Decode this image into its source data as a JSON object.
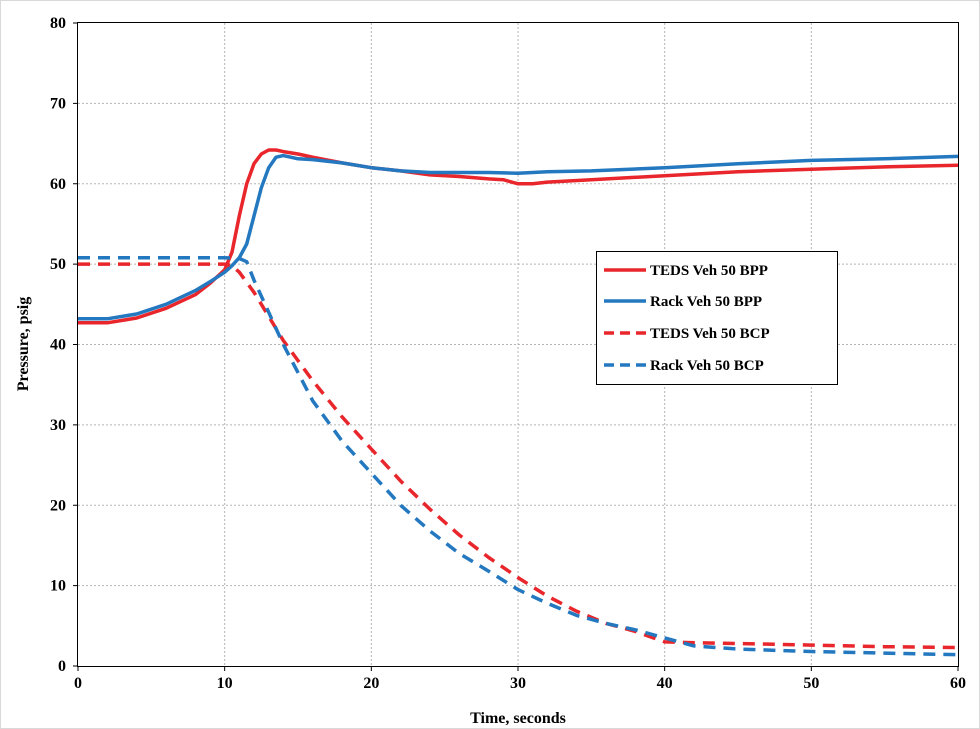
{
  "chart_data": {
    "type": "line",
    "title": "",
    "xlabel": "Time, seconds",
    "ylabel": "Pressure, psig",
    "xlim": [
      0,
      60
    ],
    "ylim": [
      0,
      80
    ],
    "x_ticks": [
      0,
      10,
      20,
      30,
      40,
      50,
      60
    ],
    "y_ticks": [
      0,
      10,
      20,
      30,
      40,
      50,
      60,
      70,
      80
    ],
    "grid": true,
    "legend_position": "right-middle",
    "series": [
      {
        "name": "TEDS Veh 50 BPP",
        "color": "#e8262b",
        "dash": "solid",
        "x": [
          0,
          2,
          4,
          6,
          8,
          9,
          10,
          10.5,
          11,
          11.5,
          12,
          12.5,
          13,
          13.5,
          14,
          15,
          16,
          18,
          20,
          22,
          24,
          26,
          28,
          29,
          30,
          31,
          32,
          35,
          40,
          45,
          50,
          55,
          60
        ],
        "y": [
          42.7,
          42.7,
          43.3,
          44.5,
          46.2,
          47.6,
          49.3,
          51.5,
          56.0,
          60.0,
          62.5,
          63.7,
          64.2,
          64.2,
          64.0,
          63.7,
          63.3,
          62.6,
          62.0,
          61.6,
          61.1,
          60.9,
          60.6,
          60.5,
          60.0,
          60.0,
          60.2,
          60.5,
          61.0,
          61.5,
          61.8,
          62.1,
          62.3
        ]
      },
      {
        "name": "Rack Veh 50 BPP",
        "color": "#2378c0",
        "dash": "solid",
        "x": [
          0,
          2,
          4,
          6,
          8,
          9,
          10,
          10.5,
          11,
          11.5,
          12,
          12.5,
          13,
          13.5,
          14,
          14.5,
          15,
          16,
          18,
          20,
          22,
          24,
          26,
          28,
          30,
          32,
          35,
          40,
          45,
          50,
          55,
          60
        ],
        "y": [
          43.2,
          43.2,
          43.8,
          45.0,
          46.7,
          47.8,
          49.0,
          49.8,
          50.8,
          52.5,
          56.0,
          59.5,
          62.0,
          63.3,
          63.5,
          63.3,
          63.1,
          63.0,
          62.6,
          62.0,
          61.6,
          61.4,
          61.4,
          61.4,
          61.3,
          61.5,
          61.6,
          62.0,
          62.5,
          62.9,
          63.1,
          63.4
        ]
      },
      {
        "name": "TEDS Veh 50 BCP",
        "color": "#e8262b",
        "dash": "dashed",
        "x": [
          0,
          5,
          10,
          10.5,
          11,
          12,
          13,
          14,
          15,
          16,
          18,
          20,
          22,
          24,
          26,
          28,
          30,
          32,
          34,
          36,
          38,
          40,
          42,
          45,
          50,
          55,
          60
        ],
        "y": [
          50.0,
          50.0,
          50.0,
          49.8,
          49.0,
          46.5,
          43.5,
          40.5,
          38.0,
          35.5,
          31.0,
          27.0,
          23.0,
          19.5,
          16.3,
          13.5,
          11.0,
          8.7,
          6.8,
          5.3,
          4.3,
          3.0,
          2.9,
          2.8,
          2.6,
          2.4,
          2.3
        ]
      },
      {
        "name": "Rack Veh 50 BCP",
        "color": "#2378c0",
        "dash": "dashed",
        "x": [
          0,
          5,
          10,
          11,
          11.5,
          12,
          13,
          14,
          15,
          16,
          18,
          20,
          22,
          24,
          26,
          28,
          30,
          32,
          34,
          36,
          38,
          40,
          42,
          45,
          50,
          55,
          60
        ],
        "y": [
          50.8,
          50.8,
          50.8,
          50.7,
          50.3,
          48.0,
          44.0,
          40.0,
          36.5,
          33.0,
          28.0,
          24.0,
          20.0,
          16.8,
          14.0,
          11.8,
          9.5,
          7.8,
          6.3,
          5.3,
          4.5,
          3.5,
          2.5,
          2.1,
          1.8,
          1.6,
          1.4
        ]
      }
    ]
  }
}
